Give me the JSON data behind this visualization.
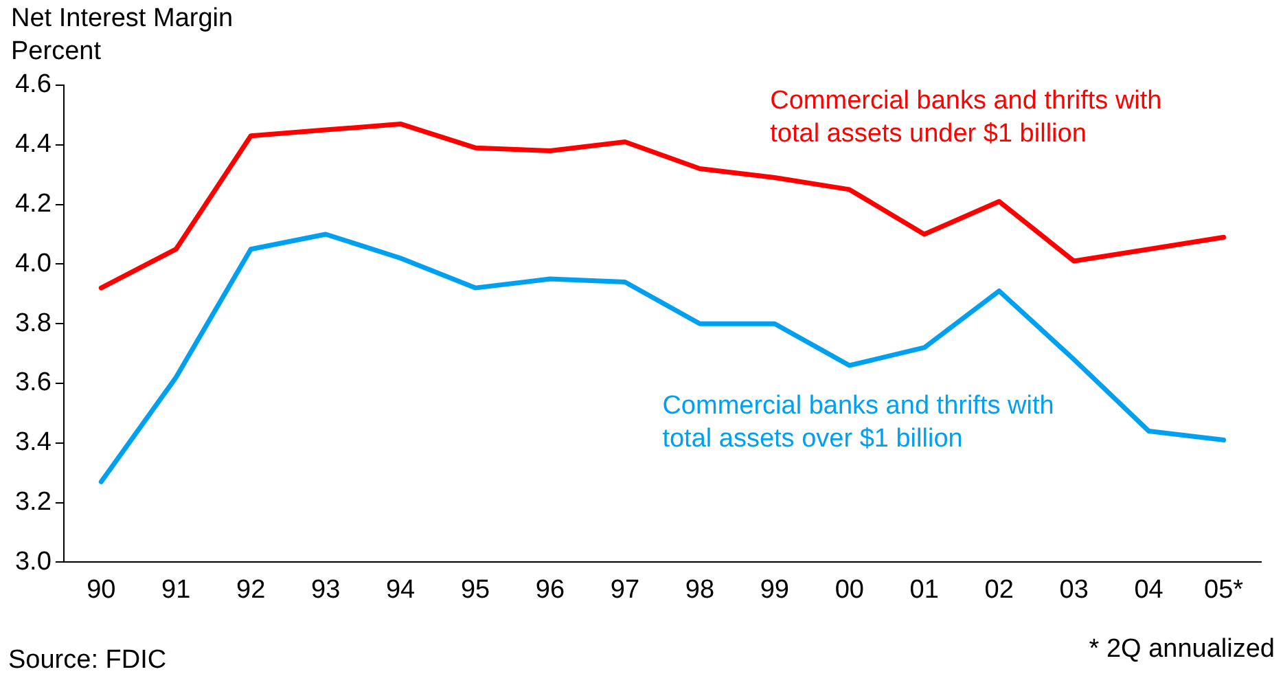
{
  "chart_data": {
    "type": "line",
    "title": "Net Interest Margin",
    "ylabel": "Percent",
    "categories": [
      "90",
      "91",
      "92",
      "93",
      "94",
      "95",
      "96",
      "97",
      "98",
      "99",
      "00",
      "01",
      "02",
      "03",
      "04",
      "05*"
    ],
    "series": [
      {
        "name": "Commercial banks and thrifts with total assets under $1 billion",
        "color": "#ff0000",
        "values": [
          3.92,
          4.05,
          4.43,
          4.45,
          4.47,
          4.39,
          4.38,
          4.41,
          4.32,
          4.29,
          4.25,
          4.1,
          4.21,
          4.01,
          4.05,
          4.09
        ]
      },
      {
        "name": "Commercial banks and thrifts with total assets over $1 billion",
        "color": "#00a0f0",
        "values": [
          3.27,
          3.62,
          4.05,
          4.1,
          4.02,
          3.92,
          3.95,
          3.94,
          3.8,
          3.8,
          3.66,
          3.72,
          3.91,
          3.68,
          3.44,
          3.41
        ]
      }
    ],
    "ylim": [
      3.0,
      4.6
    ],
    "yticks": [
      {
        "value": 3,
        "label": "3.0"
      },
      3.2,
      3.4,
      3.6,
      3.8,
      {
        "value": 4,
        "label": "4.0"
      },
      4.2,
      4.4,
      4.6
    ],
    "grid": false,
    "legend": false,
    "marker": "none",
    "line_style": "solid",
    "annotations": [
      "Source: FDIC",
      "* 2Q annualized"
    ]
  }
}
